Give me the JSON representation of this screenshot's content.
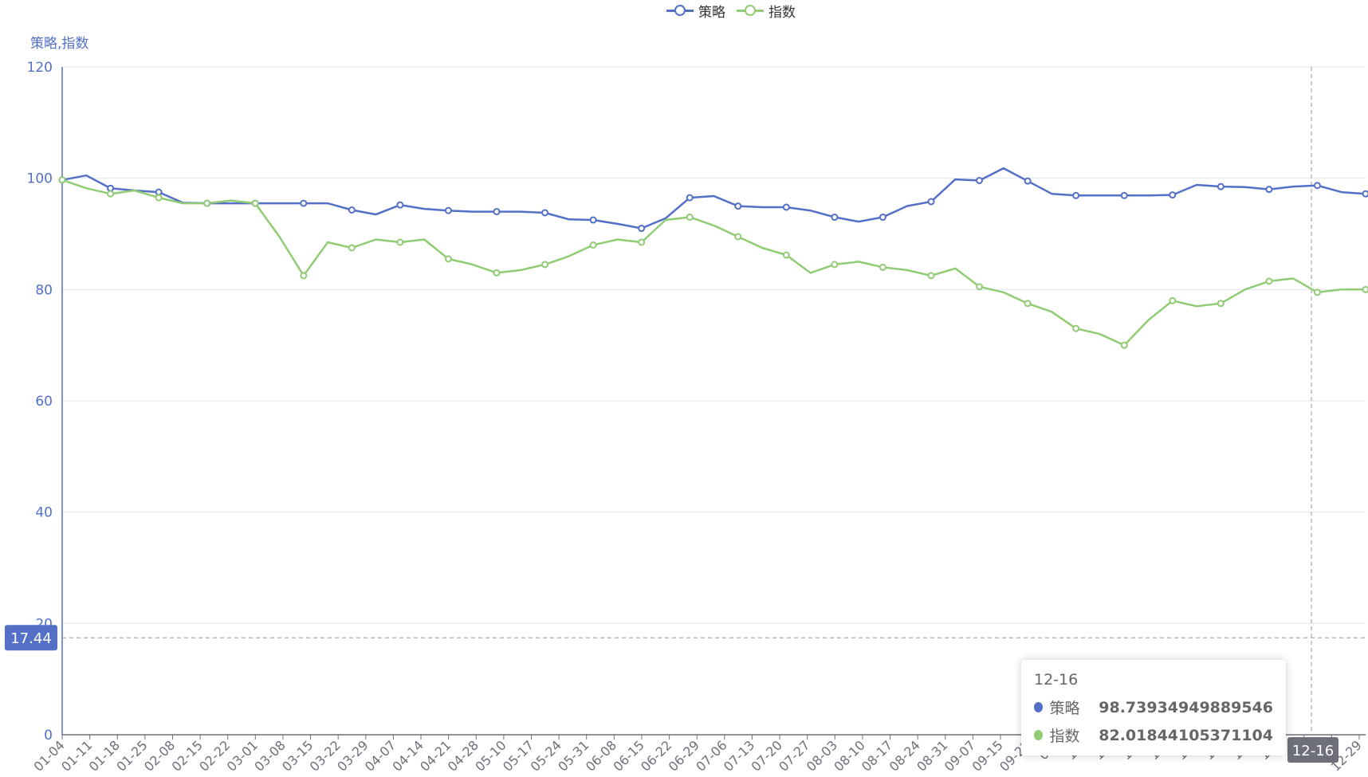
{
  "chart_data": {
    "type": "line",
    "ylabel": "策略,指数",
    "ylim": [
      0,
      120
    ],
    "yticks": [
      0,
      20,
      40,
      60,
      80,
      100,
      120
    ],
    "legend_position": "top-center",
    "grid": true,
    "xtick_labels": [
      "01-04",
      "01-11",
      "01-18",
      "01-25",
      "02-08",
      "02-15",
      "02-22",
      "03-01",
      "03-08",
      "03-15",
      "03-22",
      "03-29",
      "04-07",
      "04-14",
      "04-21",
      "04-28",
      "05-10",
      "05-17",
      "05-24",
      "05-31",
      "06-08",
      "06-15",
      "06-22",
      "06-29",
      "07-06",
      "07-13",
      "07-20",
      "07-27",
      "08-03",
      "08-10",
      "08-17",
      "08-24",
      "08-31",
      "09-07",
      "09-15",
      "09-22",
      "09-",
      "10-",
      "10-",
      "10-",
      "11-",
      "11-",
      "11-",
      "11-",
      "12-",
      "12-",
      "12-",
      "12-29"
    ],
    "series": [
      {
        "name": "策略",
        "color": "#5470c6",
        "values": [
          99.7,
          100.5,
          98.2,
          97.8,
          97.5,
          95.6,
          95.5,
          95.5,
          95.5,
          95.5,
          95.5,
          95.5,
          94.3,
          93.5,
          95.2,
          94.5,
          94.2,
          94.0,
          94.0,
          94.0,
          93.8,
          92.6,
          92.5,
          91.8,
          91.0,
          92.8,
          96.5,
          96.8,
          95.0,
          94.8,
          94.8,
          94.2,
          93.0,
          92.2,
          93.0,
          95.0,
          95.8,
          99.8,
          99.6,
          101.8,
          99.5,
          97.2,
          96.9,
          96.9,
          96.9,
          96.9,
          97.0,
          98.8,
          98.5,
          98.4,
          98.0,
          98.5,
          98.7,
          97.5,
          97.2
        ]
      },
      {
        "name": "指数",
        "color": "#91cc75",
        "values": [
          99.7,
          98.2,
          97.2,
          97.8,
          96.5,
          95.5,
          95.5,
          96.0,
          95.5,
          89.5,
          82.5,
          88.5,
          87.5,
          89.0,
          88.5,
          89.0,
          85.5,
          84.5,
          83.0,
          83.5,
          84.5,
          86.0,
          88.0,
          89.0,
          88.5,
          92.5,
          93.0,
          91.5,
          89.5,
          87.5,
          86.2,
          83.0,
          84.5,
          85.0,
          84.0,
          83.5,
          82.5,
          83.8,
          80.5,
          79.5,
          77.5,
          76.0,
          73.0,
          72.0,
          70.0,
          74.5,
          78.0,
          77.0,
          77.5,
          80.0,
          81.5,
          82.0,
          79.5,
          80.0,
          80.0
        ]
      }
    ],
    "axis_pointer": {
      "y_value": "17.44",
      "x_label": "12-16"
    },
    "tooltip": {
      "date": "12-16",
      "rows": [
        {
          "name": "策略",
          "value": "98.73934949889546",
          "color": "#5470c6"
        },
        {
          "name": "指数",
          "value": "82.01844105371104",
          "color": "#91cc75"
        }
      ]
    }
  }
}
